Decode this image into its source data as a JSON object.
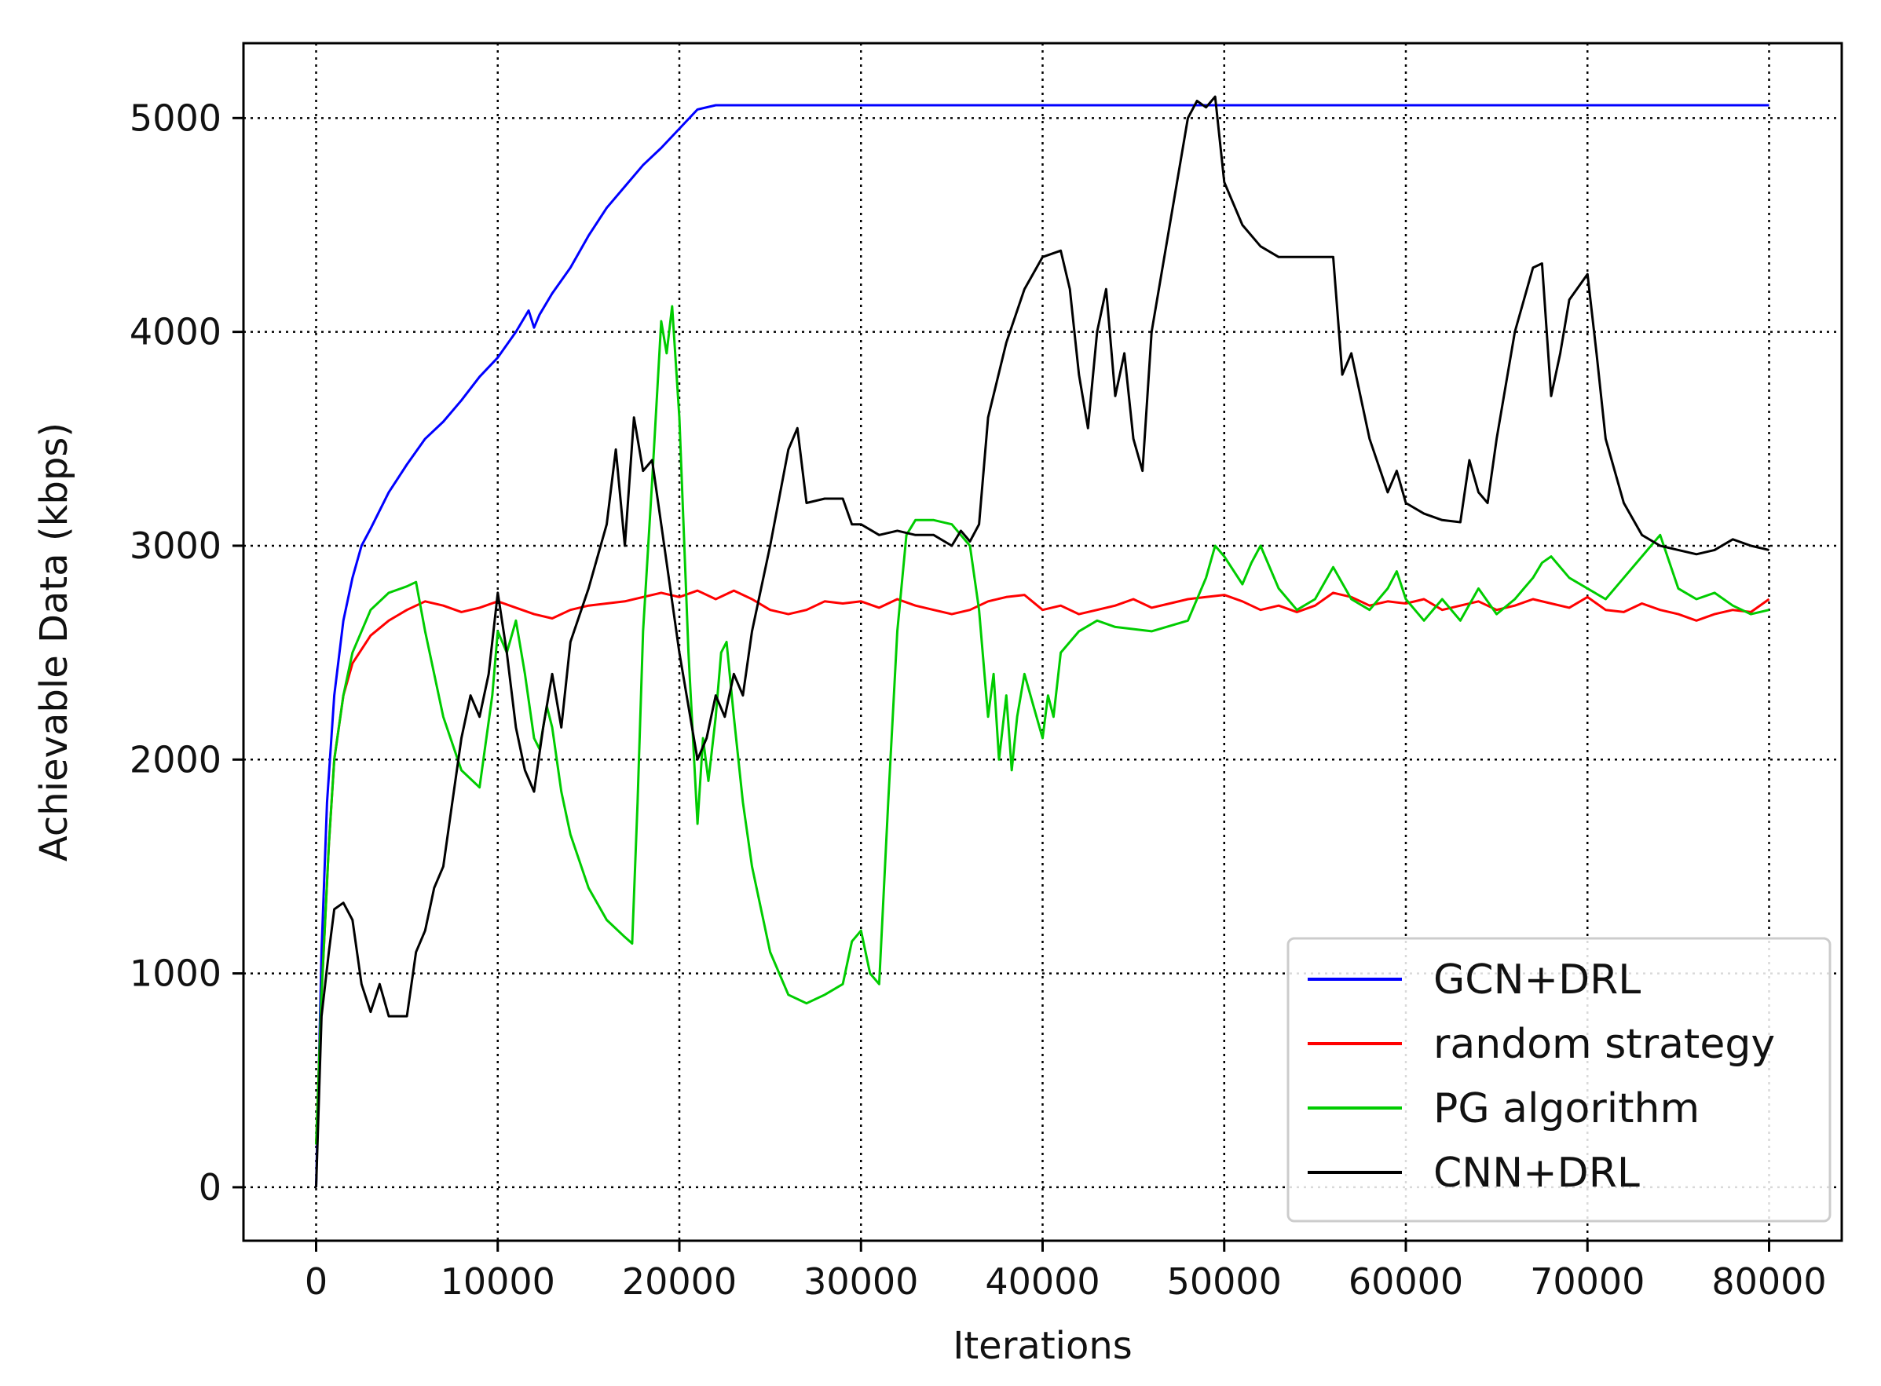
{
  "chart_data": {
    "type": "line",
    "xlabel": "Iterations",
    "ylabel": "Achievable Data (kbps)",
    "xlim": [
      -4000,
      84000
    ],
    "ylim": [
      -250,
      5350
    ],
    "xticks": [
      0,
      10000,
      20000,
      30000,
      40000,
      50000,
      60000,
      70000,
      80000
    ],
    "yticks": [
      0,
      1000,
      2000,
      3000,
      4000,
      5000
    ],
    "grid": true,
    "legend_position": "lower-right",
    "series": [
      {
        "name": "GCN+DRL",
        "color": "#0000ff",
        "x": [
          0,
          300,
          600,
          1000,
          1500,
          2000,
          2500,
          3000,
          4000,
          5000,
          6000,
          7000,
          8000,
          9000,
          10000,
          11000,
          11700,
          12000,
          12300,
          13000,
          14000,
          15000,
          16000,
          17000,
          18000,
          19000,
          20000,
          21000,
          22000,
          23000,
          30000,
          40000,
          50000,
          60000,
          70000,
          80000
        ],
        "values": [
          0,
          1100,
          1800,
          2300,
          2650,
          2850,
          3000,
          3080,
          3250,
          3380,
          3500,
          3580,
          3680,
          3790,
          3880,
          4000,
          4100,
          4020,
          4080,
          4180,
          4300,
          4450,
          4580,
          4680,
          4780,
          4860,
          4950,
          5040,
          5060,
          5060,
          5060,
          5060,
          5060,
          5060,
          5060,
          5060
        ]
      },
      {
        "name": "random strategy",
        "color": "#ff0000",
        "x": [
          0,
          300,
          700,
          1000,
          1500,
          2000,
          3000,
          4000,
          5000,
          6000,
          7000,
          8000,
          9000,
          10000,
          11000,
          12000,
          13000,
          14000,
          15000,
          16000,
          17000,
          18000,
          19000,
          20000,
          21000,
          22000,
          23000,
          24000,
          25000,
          26000,
          27000,
          28000,
          29000,
          30000,
          31000,
          32000,
          33000,
          34000,
          35000,
          36000,
          37000,
          38000,
          39000,
          40000,
          41000,
          42000,
          43000,
          44000,
          45000,
          46000,
          47000,
          48000,
          49000,
          50000,
          51000,
          52000,
          53000,
          54000,
          55000,
          56000,
          57000,
          58000,
          59000,
          60000,
          61000,
          62000,
          63000,
          64000,
          65000,
          66000,
          67000,
          68000,
          69000,
          70000,
          71000,
          72000,
          73000,
          74000,
          75000,
          76000,
          77000,
          78000,
          79000,
          80000
        ],
        "values": [
          200,
          900,
          1600,
          2000,
          2300,
          2450,
          2580,
          2650,
          2700,
          2740,
          2720,
          2690,
          2710,
          2740,
          2710,
          2680,
          2660,
          2700,
          2720,
          2730,
          2740,
          2760,
          2780,
          2760,
          2790,
          2750,
          2790,
          2750,
          2700,
          2680,
          2700,
          2740,
          2730,
          2740,
          2710,
          2750,
          2720,
          2700,
          2680,
          2700,
          2740,
          2760,
          2770,
          2700,
          2720,
          2680,
          2700,
          2720,
          2750,
          2710,
          2730,
          2750,
          2760,
          2770,
          2740,
          2700,
          2720,
          2690,
          2720,
          2780,
          2760,
          2720,
          2740,
          2730,
          2750,
          2700,
          2720,
          2740,
          2700,
          2720,
          2750,
          2730,
          2710,
          2760,
          2700,
          2690,
          2730,
          2700,
          2680,
          2650,
          2680,
          2700,
          2690,
          2750
        ]
      },
      {
        "name": "PG algorithm",
        "color": "#00cc00",
        "x": [
          0,
          300,
          700,
          1000,
          1500,
          2000,
          3000,
          4000,
          5000,
          5500,
          6000,
          7000,
          8000,
          9000,
          9700,
          10000,
          10500,
          11000,
          11500,
          12000,
          12300,
          12700,
          13000,
          13500,
          14000,
          15000,
          16000,
          17000,
          17400,
          17700,
          18000,
          18500,
          19000,
          19300,
          19600,
          20000,
          20500,
          21000,
          21300,
          21600,
          22000,
          22300,
          22600,
          23000,
          23500,
          24000,
          25000,
          26000,
          27000,
          28000,
          29000,
          29500,
          30000,
          30500,
          31000,
          31500,
          32000,
          32500,
          33000,
          34000,
          35000,
          35500,
          36000,
          36500,
          37000,
          37300,
          37600,
          38000,
          38300,
          38600,
          39000,
          39500,
          40000,
          40300,
          40600,
          41000,
          42000,
          43000,
          44000,
          46000,
          48000,
          49000,
          49500,
          50000,
          51000,
          51500,
          52000,
          53000,
          54000,
          55000,
          56000,
          57000,
          58000,
          59000,
          59500,
          60000,
          61000,
          62000,
          63000,
          64000,
          65000,
          66000,
          66500,
          67000,
          67500,
          68000,
          69000,
          70000,
          71000,
          72000,
          73000,
          74000,
          75000,
          76000,
          77000,
          78000,
          79000,
          80000
        ],
        "values": [
          200,
          900,
          1600,
          2000,
          2300,
          2500,
          2700,
          2780,
          2810,
          2830,
          2600,
          2200,
          1950,
          1870,
          2300,
          2600,
          2500,
          2650,
          2400,
          2100,
          2050,
          2250,
          2150,
          1850,
          1650,
          1400,
          1250,
          1170,
          1140,
          1800,
          2600,
          3300,
          4050,
          3900,
          4120,
          3600,
          2500,
          1700,
          2100,
          1900,
          2200,
          2500,
          2550,
          2200,
          1800,
          1500,
          1100,
          900,
          860,
          900,
          950,
          1150,
          1200,
          1000,
          950,
          1800,
          2600,
          3050,
          3120,
          3120,
          3100,
          3050,
          3000,
          2700,
          2200,
          2400,
          2000,
          2300,
          1950,
          2200,
          2400,
          2250,
          2100,
          2300,
          2200,
          2500,
          2600,
          2650,
          2620,
          2600,
          2650,
          2850,
          3000,
          2950,
          2820,
          2920,
          3000,
          2800,
          2700,
          2750,
          2900,
          2750,
          2700,
          2800,
          2880,
          2750,
          2650,
          2750,
          2650,
          2800,
          2680,
          2750,
          2800,
          2850,
          2920,
          2950,
          2850,
          2800,
          2750,
          2850,
          2950,
          3050,
          2800,
          2750,
          2780,
          2720,
          2680,
          2700
        ]
      },
      {
        "name": "CNN+DRL",
        "color": "#000000",
        "x": [
          0,
          300,
          700,
          1000,
          1500,
          2000,
          2500,
          3000,
          3500,
          4000,
          5000,
          5500,
          6000,
          6500,
          7000,
          7500,
          8000,
          8500,
          9000,
          9500,
          10000,
          10500,
          11000,
          11500,
          12000,
          12500,
          13000,
          13500,
          14000,
          15000,
          16000,
          16500,
          17000,
          17500,
          18000,
          18500,
          19000,
          20000,
          21000,
          21500,
          22000,
          22500,
          23000,
          23500,
          24000,
          25000,
          26000,
          26500,
          27000,
          28000,
          29000,
          29500,
          30000,
          31000,
          32000,
          33000,
          34000,
          35000,
          35500,
          36000,
          36500,
          37000,
          38000,
          39000,
          40000,
          41000,
          41500,
          42000,
          42500,
          43000,
          43500,
          44000,
          44500,
          45000,
          45500,
          46000,
          47000,
          48000,
          48500,
          49000,
          49500,
          50000,
          51000,
          52000,
          53000,
          54000,
          55000,
          56000,
          56500,
          57000,
          58000,
          59000,
          59500,
          60000,
          61000,
          62000,
          63000,
          63500,
          64000,
          64500,
          65000,
          66000,
          67000,
          67500,
          68000,
          68500,
          69000,
          70000,
          70500,
          71000,
          72000,
          73000,
          74000,
          75000,
          76000,
          77000,
          78000,
          79000,
          80000
        ],
        "values": [
          0,
          800,
          1100,
          1300,
          1330,
          1250,
          950,
          820,
          950,
          800,
          800,
          1100,
          1200,
          1400,
          1500,
          1800,
          2100,
          2300,
          2200,
          2400,
          2780,
          2500,
          2150,
          1950,
          1850,
          2150,
          2400,
          2150,
          2550,
          2800,
          3100,
          3450,
          3000,
          3600,
          3350,
          3400,
          3100,
          2500,
          2000,
          2100,
          2300,
          2200,
          2400,
          2300,
          2600,
          3000,
          3450,
          3550,
          3200,
          3220,
          3220,
          3100,
          3100,
          3050,
          3070,
          3050,
          3050,
          3000,
          3070,
          3020,
          3100,
          3600,
          3950,
          4200,
          4350,
          4380,
          4200,
          3800,
          3550,
          4000,
          4200,
          3700,
          3900,
          3500,
          3350,
          4000,
          4500,
          5000,
          5080,
          5050,
          5100,
          4700,
          4500,
          4400,
          4350,
          4350,
          4350,
          4350,
          3800,
          3900,
          3500,
          3250,
          3350,
          3200,
          3150,
          3120,
          3110,
          3400,
          3250,
          3200,
          3500,
          4000,
          4300,
          4320,
          3700,
          3900,
          4150,
          4270,
          3900,
          3500,
          3200,
          3050,
          3000,
          2980,
          2960,
          2980,
          3030,
          3000,
          2980
        ]
      }
    ]
  }
}
